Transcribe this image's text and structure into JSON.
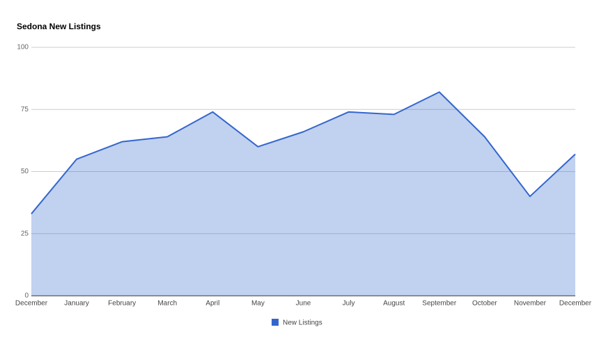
{
  "chart_data": {
    "type": "area",
    "title": "Sedona New Listings",
    "categories": [
      "December",
      "January",
      "February",
      "March",
      "April",
      "May",
      "June",
      "July",
      "August",
      "September",
      "October",
      "November",
      "December"
    ],
    "series": [
      {
        "name": "New Listings",
        "color": "#3366cc",
        "values": [
          33,
          55,
          62,
          64,
          74,
          60,
          66,
          74,
          73,
          82,
          64,
          40,
          57
        ]
      }
    ],
    "ylim": [
      0,
      100
    ],
    "yticks": [
      0,
      25,
      50,
      75,
      100
    ],
    "grid": true,
    "legend": "bottom"
  }
}
